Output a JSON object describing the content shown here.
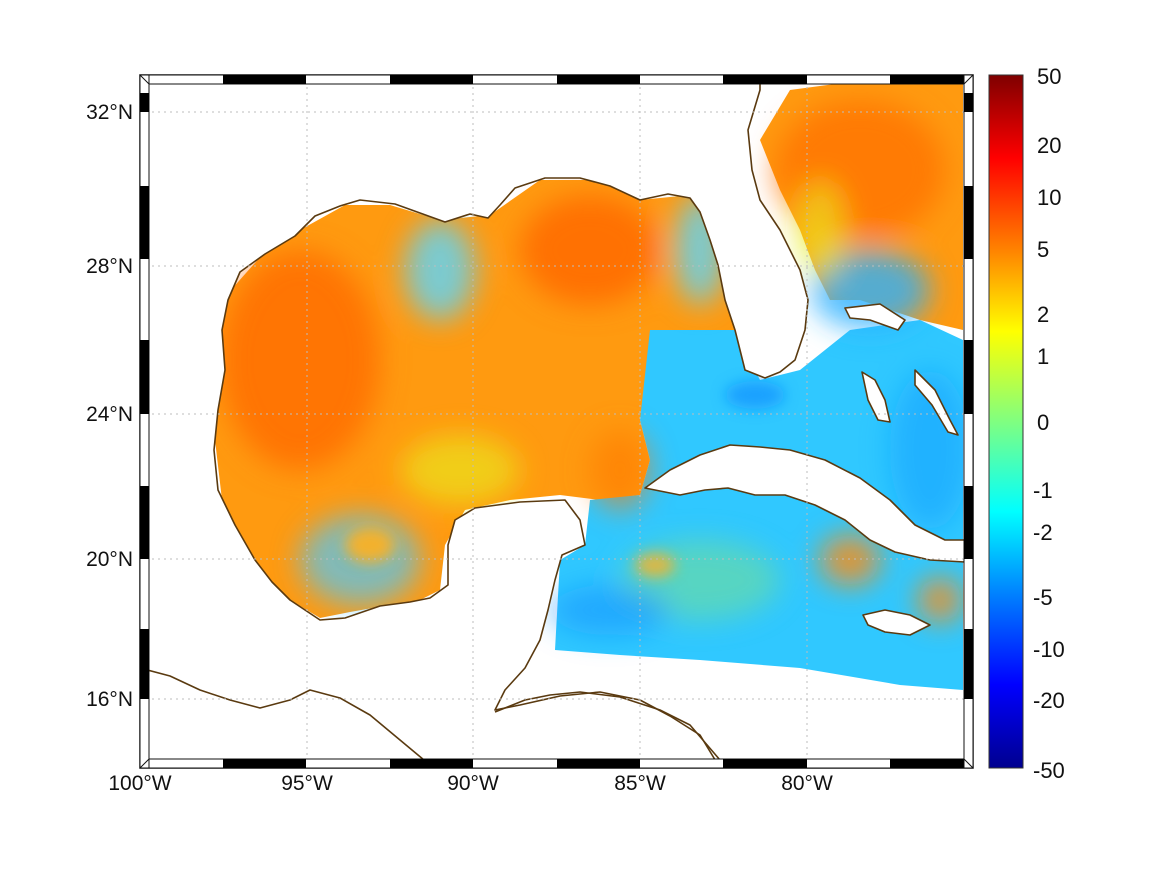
{
  "map": {
    "longitude_labels": [
      "100°W",
      "95°W",
      "90°W",
      "85°W",
      "80°W"
    ],
    "latitude_labels": [
      "16°N",
      "20°N",
      "24°N",
      "28°N",
      "32°N"
    ],
    "longitude_range": [
      -100,
      -75
    ],
    "latitude_range": [
      14.5,
      33
    ],
    "land_color": "#ffffff",
    "coastline_color": "#5a3a10",
    "grid": true
  },
  "colorbar": {
    "tick_labels": [
      "50",
      "20",
      "10",
      "5",
      "2",
      "1",
      "0",
      "-1",
      "-2",
      "-5",
      "-10",
      "-20",
      "-50"
    ],
    "colormap": "jet",
    "colors": [
      "#7f0000",
      "#ff0000",
      "#ff8000",
      "#ffff00",
      "#80ff80",
      "#00ffff",
      "#0080ff",
      "#0000ff",
      "#00008f"
    ]
  }
}
